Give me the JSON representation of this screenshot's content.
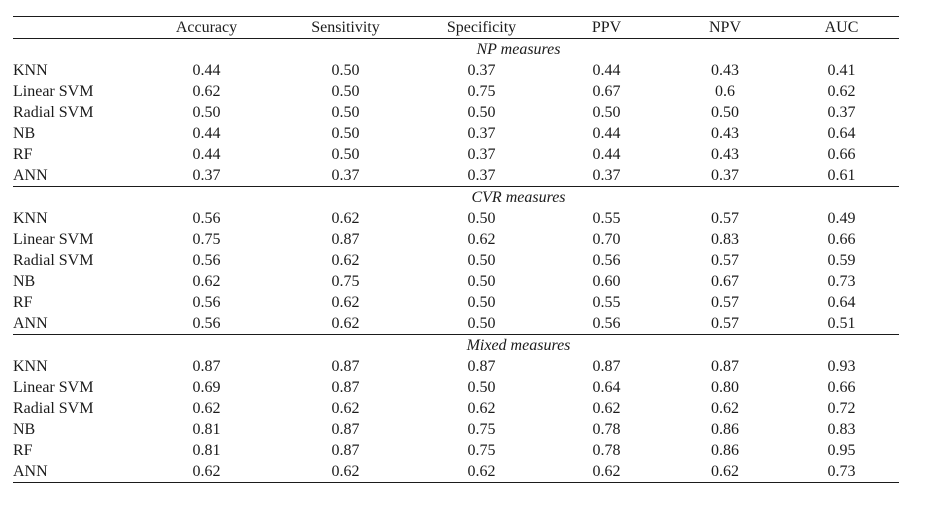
{
  "table": {
    "corner_label": "",
    "columns": [
      "Accuracy",
      "Sensitivity",
      "Specificity",
      "PPV",
      "NPV",
      "AUC"
    ],
    "sections": [
      {
        "label": "NP measures",
        "rows": [
          {
            "name": "KNN",
            "values": [
              "0.44",
              "0.50",
              "0.37",
              "0.44",
              "0.43",
              "0.41"
            ]
          },
          {
            "name": "Linear SVM",
            "values": [
              "0.62",
              "0.50",
              "0.75",
              "0.67",
              "0.6",
              "0.62"
            ]
          },
          {
            "name": "Radial SVM",
            "values": [
              "0.50",
              "0.50",
              "0.50",
              "0.50",
              "0.50",
              "0.37"
            ]
          },
          {
            "name": "NB",
            "values": [
              "0.44",
              "0.50",
              "0.37",
              "0.44",
              "0.43",
              "0.64"
            ]
          },
          {
            "name": "RF",
            "values": [
              "0.44",
              "0.50",
              "0.37",
              "0.44",
              "0.43",
              "0.66"
            ]
          },
          {
            "name": "ANN",
            "values": [
              "0.37",
              "0.37",
              "0.37",
              "0.37",
              "0.37",
              "0.61"
            ]
          }
        ]
      },
      {
        "label": "CVR measures",
        "rows": [
          {
            "name": "KNN",
            "values": [
              "0.56",
              "0.62",
              "0.50",
              "0.55",
              "0.57",
              "0.49"
            ]
          },
          {
            "name": "Linear SVM",
            "values": [
              "0.75",
              "0.87",
              "0.62",
              "0.70",
              "0.83",
              "0.66"
            ]
          },
          {
            "name": "Radial SVM",
            "values": [
              "0.56",
              "0.62",
              "0.50",
              "0.56",
              "0.57",
              "0.59"
            ]
          },
          {
            "name": "NB",
            "values": [
              "0.62",
              "0.75",
              "0.50",
              "0.60",
              "0.67",
              "0.73"
            ]
          },
          {
            "name": "RF",
            "values": [
              "0.56",
              "0.62",
              "0.50",
              "0.55",
              "0.57",
              "0.64"
            ]
          },
          {
            "name": "ANN",
            "values": [
              "0.56",
              "0.62",
              "0.50",
              "0.56",
              "0.57",
              "0.51"
            ]
          }
        ]
      },
      {
        "label": "Mixed measures",
        "rows": [
          {
            "name": "KNN",
            "values": [
              "0.87",
              "0.87",
              "0.87",
              "0.87",
              "0.87",
              "0.93"
            ]
          },
          {
            "name": "Linear SVM",
            "values": [
              "0.69",
              "0.87",
              "0.50",
              "0.64",
              "0.80",
              "0.66"
            ]
          },
          {
            "name": "Radial SVM",
            "values": [
              "0.62",
              "0.62",
              "0.62",
              "0.62",
              "0.62",
              "0.72"
            ]
          },
          {
            "name": "NB",
            "values": [
              "0.81",
              "0.87",
              "0.75",
              "0.78",
              "0.86",
              "0.83"
            ]
          },
          {
            "name": "RF",
            "values": [
              "0.81",
              "0.87",
              "0.75",
              "0.78",
              "0.86",
              "0.95"
            ]
          },
          {
            "name": "ANN",
            "values": [
              "0.62",
              "0.62",
              "0.62",
              "0.62",
              "0.62",
              "0.73"
            ]
          }
        ]
      }
    ]
  },
  "colors": {
    "background": "#ffffff",
    "text": "#1b1b1b",
    "rule": "#1b1b1b"
  }
}
